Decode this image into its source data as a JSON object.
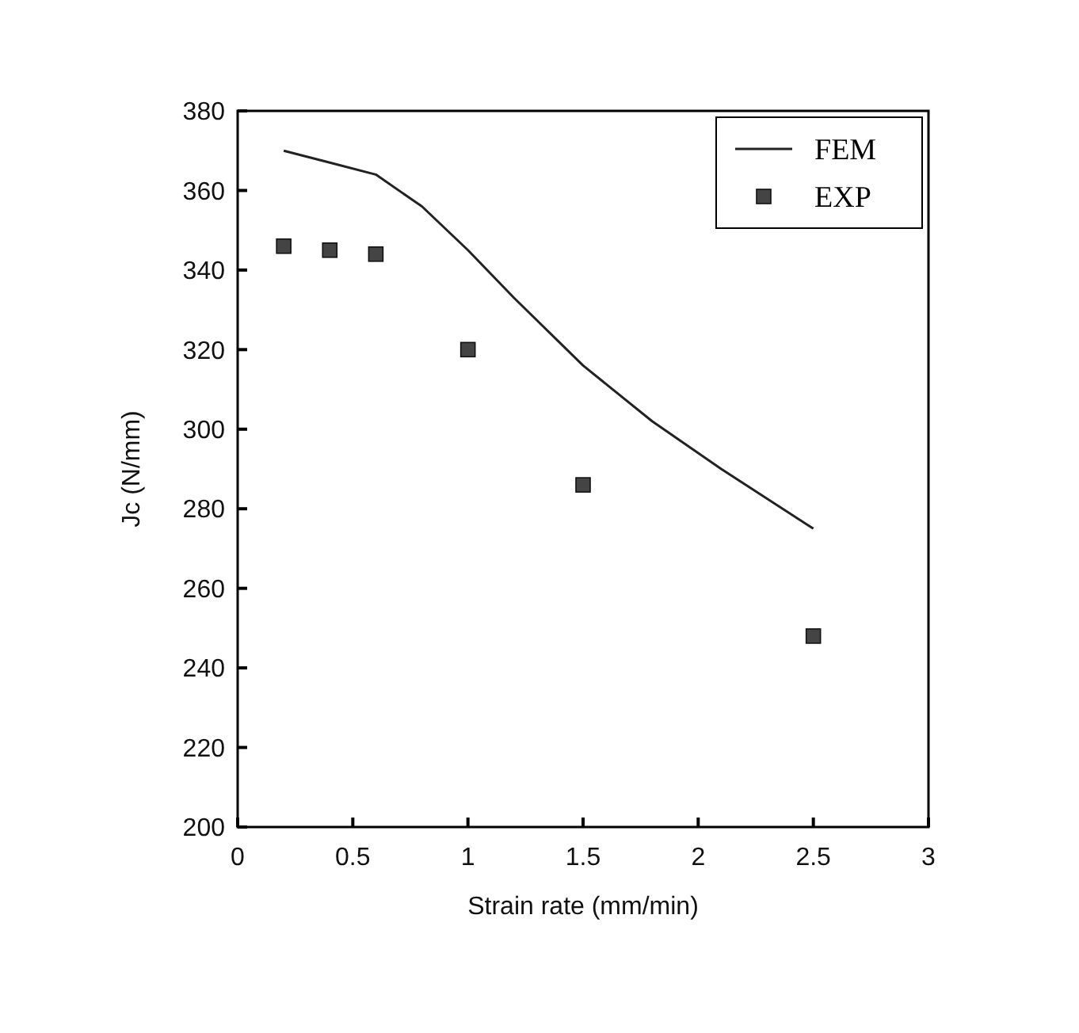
{
  "chart_data": {
    "type": "scatter",
    "xlabel": "Strain rate (mm/min)",
    "ylabel": "Jc (N/mm)",
    "xlim": [
      0,
      3
    ],
    "xticks": [
      0,
      0.5,
      1,
      1.5,
      2,
      2.5,
      3
    ],
    "ylim": [
      200,
      380
    ],
    "yticks": [
      200,
      220,
      240,
      260,
      280,
      300,
      320,
      340,
      360,
      380
    ],
    "grid": false,
    "legend": "top right",
    "series": [
      {
        "name": "FEM",
        "type": "line",
        "color": "#222222",
        "marker": "none",
        "line_style": "solid",
        "x": [
          0.2,
          0.4,
          0.6,
          0.8,
          1.0,
          1.2,
          1.5,
          1.8,
          2.1,
          2.5
        ],
        "values": [
          370,
          367,
          364,
          356,
          345,
          333,
          316,
          302,
          290,
          275
        ]
      },
      {
        "name": "EXP",
        "color": "#444444",
        "marker": "square",
        "x": [
          0.2,
          0.4,
          0.6,
          1.0,
          1.5,
          2.5
        ],
        "values": [
          346,
          345,
          344,
          320,
          286,
          248
        ]
      }
    ]
  }
}
